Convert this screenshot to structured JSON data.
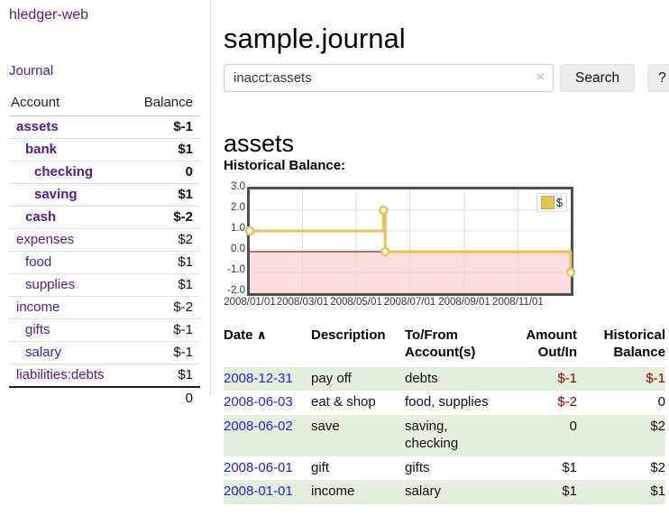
{
  "brand": "hledger-web",
  "nav": {
    "journal": "Journal"
  },
  "colors": {
    "link_purple": "#551a8b",
    "link_blue": "#2323d6",
    "neg_strong": "#8e0000",
    "neg_soft": "#c27878",
    "row_green": "#e3efdc",
    "chart_line": "#e7c253",
    "chart_negative_bg": "#fadddd",
    "chart_zero_line": "#a01818",
    "chart_grid": "#dcdcdc"
  },
  "sidebar_table": {
    "headers": {
      "account": "Account",
      "balance": "Balance"
    },
    "rows": [
      {
        "name": "assets",
        "indent": 1,
        "bold": true,
        "balance": "$-1",
        "balance_style": "neg-strong"
      },
      {
        "name": "bank",
        "indent": 2,
        "bold": true,
        "balance": "$1",
        "balance_style": "pos"
      },
      {
        "name": "checking",
        "indent": 3,
        "bold": true,
        "balance": "0",
        "balance_style": "pos"
      },
      {
        "name": "saving",
        "indent": 3,
        "bold": true,
        "balance": "$1",
        "balance_style": "pos"
      },
      {
        "name": "cash",
        "indent": 2,
        "bold": true,
        "balance": "$-2",
        "balance_style": "neg-strong"
      },
      {
        "name": "expenses",
        "indent": 1,
        "bold": false,
        "balance": "$2",
        "balance_style": "pos"
      },
      {
        "name": "food",
        "indent": 2,
        "bold": false,
        "balance": "$1",
        "balance_style": "pos"
      },
      {
        "name": "supplies",
        "indent": 2,
        "bold": false,
        "balance": "$1",
        "balance_style": "pos"
      },
      {
        "name": "income",
        "indent": 1,
        "bold": false,
        "balance": "$-2",
        "balance_style": "neg-soft"
      },
      {
        "name": "gifts",
        "indent": 2,
        "bold": false,
        "balance": "$-1",
        "balance_style": "neg-soft"
      },
      {
        "name": "salary",
        "indent": 2,
        "bold": false,
        "balance": "$-1",
        "balance_style": "neg-soft",
        "link": "blue"
      },
      {
        "name": "liabilities:debts",
        "indent": 1,
        "bold": false,
        "balance": "$1",
        "balance_style": "pos"
      }
    ],
    "total": "0"
  },
  "header": {
    "title": "sample.journal"
  },
  "search": {
    "value": "inacct:assets",
    "clear": "×",
    "search_label": "Search",
    "help_label": "?"
  },
  "account_page": {
    "title": "assets",
    "chart_label": "Historical Balance:"
  },
  "chart_data": {
    "type": "line",
    "step": true,
    "title": "Historical Balance:",
    "ylim": [
      -2,
      3
    ],
    "xlim_days": [
      0,
      365
    ],
    "grid": true,
    "negative_region": true,
    "y_ticks": [
      {
        "label": "3.0",
        "value": 3
      },
      {
        "label": "2.0",
        "value": 2
      },
      {
        "label": "1.0",
        "value": 1
      },
      {
        "label": "0.0",
        "value": 0
      },
      {
        "label": "-1.0",
        "value": -1
      },
      {
        "label": "-2.0",
        "value": -2
      }
    ],
    "x_ticks": [
      {
        "label": "2008/01/01",
        "day": 0
      },
      {
        "label": "2008/03/01",
        "day": 60
      },
      {
        "label": "2008/05/01",
        "day": 121
      },
      {
        "label": "2008/07/01",
        "day": 182
      },
      {
        "label": "2008/09/01",
        "day": 244
      },
      {
        "label": "2008/11/01",
        "day": 305
      }
    ],
    "legend": {
      "label": "$",
      "position": "top-right"
    },
    "series": [
      {
        "name": "$",
        "points": [
          {
            "date": "2008-01-01",
            "day": 0,
            "value": 1
          },
          {
            "date": "2008-06-01",
            "day": 152,
            "value": 2
          },
          {
            "date": "2008-06-03",
            "day": 154,
            "value": 0
          },
          {
            "date": "2008-12-31",
            "day": 365,
            "value": -1
          }
        ]
      }
    ]
  },
  "register": {
    "headers": [
      "Date",
      "Description",
      "To/From Account(s)",
      "Amount Out/In",
      "Historical Balance"
    ],
    "sort_icon": "∧",
    "rows": [
      {
        "date": "2008-12-31",
        "description": "pay off",
        "accounts": "debts",
        "amount": "$-1",
        "amount_neg": true,
        "balance": "$-1",
        "balance_neg": true
      },
      {
        "date": "2008-06-03",
        "description": "eat & shop",
        "accounts": "food, supplies",
        "amount": "$-2",
        "amount_neg": true,
        "balance": "0",
        "balance_neg": false
      },
      {
        "date": "2008-06-02",
        "description": "save",
        "accounts": "saving, checking",
        "amount": "0",
        "amount_neg": false,
        "balance": "$2",
        "balance_neg": false
      },
      {
        "date": "2008-06-01",
        "description": "gift",
        "accounts": "gifts",
        "amount": "$1",
        "amount_neg": false,
        "balance": "$2",
        "balance_neg": false
      },
      {
        "date": "2008-01-01",
        "description": "income",
        "accounts": "salary",
        "amount": "$1",
        "amount_neg": false,
        "balance": "$1",
        "balance_neg": false
      }
    ]
  }
}
